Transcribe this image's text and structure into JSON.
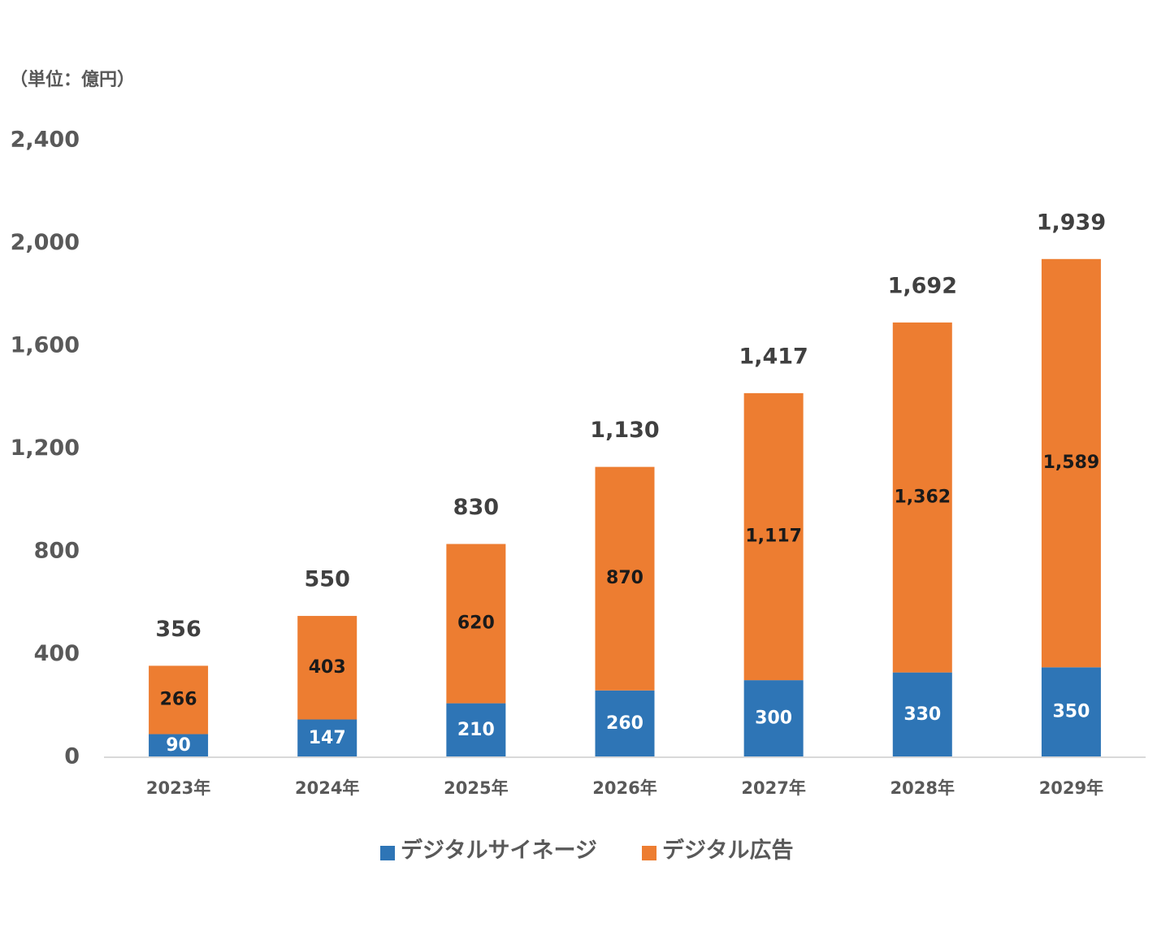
{
  "chart_data": {
    "type": "stacked_bar",
    "unit_label": "（単位：億円）",
    "categories": [
      "2023年",
      "2024年",
      "2025年",
      "2026年",
      "2027年",
      "2028年",
      "2029年"
    ],
    "series": [
      {
        "name": "デジタルサイネージ",
        "color": "#2e75b6",
        "values": [
          90,
          147,
          210,
          260,
          300,
          330,
          350
        ]
      },
      {
        "name": "デジタル広告",
        "color": "#ed7d31",
        "values": [
          266,
          403,
          620,
          870,
          1117,
          1362,
          1589
        ],
        "value_labels": [
          "266",
          "403",
          "620",
          "870",
          "1,117",
          "1,362",
          "1,589"
        ]
      }
    ],
    "totals": [
      356,
      550,
      830,
      1130,
      1417,
      1692,
      1939
    ],
    "total_labels": [
      "356",
      "550",
      "830",
      "1,130",
      "1,417",
      "1,692",
      "1,939"
    ],
    "ylim": [
      0,
      2400
    ],
    "yticks": [
      0,
      400,
      800,
      {
        "value": 1200,
        "label": "1,200"
      },
      {
        "value": 1600,
        "label": "1,600"
      },
      {
        "value": 2000,
        "label": "2,000"
      },
      {
        "value": 2400,
        "label": "2,400"
      }
    ],
    "grid": false,
    "legend": "bottom"
  }
}
